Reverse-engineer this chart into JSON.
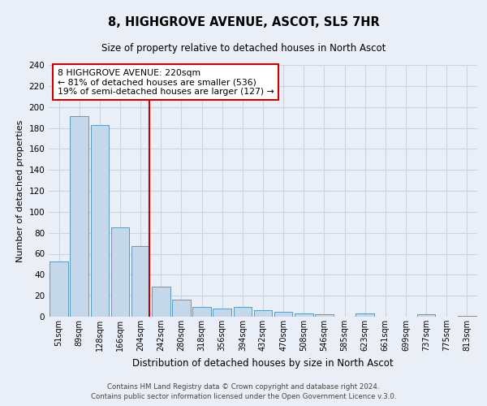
{
  "title": "8, HIGHGROVE AVENUE, ASCOT, SL5 7HR",
  "subtitle": "Size of property relative to detached houses in North Ascot",
  "xlabel": "Distribution of detached houses by size in North Ascot",
  "ylabel": "Number of detached properties",
  "bin_labels": [
    "51sqm",
    "89sqm",
    "128sqm",
    "166sqm",
    "204sqm",
    "242sqm",
    "280sqm",
    "318sqm",
    "356sqm",
    "394sqm",
    "432sqm",
    "470sqm",
    "508sqm",
    "546sqm",
    "585sqm",
    "623sqm",
    "661sqm",
    "699sqm",
    "737sqm",
    "775sqm",
    "813sqm"
  ],
  "bar_values": [
    53,
    191,
    183,
    85,
    67,
    29,
    16,
    9,
    8,
    9,
    6,
    5,
    3,
    2,
    0,
    3,
    0,
    0,
    2,
    0,
    1
  ],
  "bar_color": "#c5d8ea",
  "bar_edge_color": "#5a9abf",
  "grid_color": "#c8d4e4",
  "background_color": "#eaeff7",
  "annotation_title": "8 HIGHGROVE AVENUE: 220sqm",
  "annotation_line1": "← 81% of detached houses are smaller (536)",
  "annotation_line2": "19% of semi-detached houses are larger (127) →",
  "vline_color": "#cc0000",
  "annotation_box_edge_color": "#cc0000",
  "ylim": [
    0,
    240
  ],
  "yticks": [
    0,
    20,
    40,
    60,
    80,
    100,
    120,
    140,
    160,
    180,
    200,
    220,
    240
  ],
  "vline_x": 4.42,
  "footer1": "Contains HM Land Registry data © Crown copyright and database right 2024.",
  "footer2": "Contains public sector information licensed under the Open Government Licence v.3.0."
}
